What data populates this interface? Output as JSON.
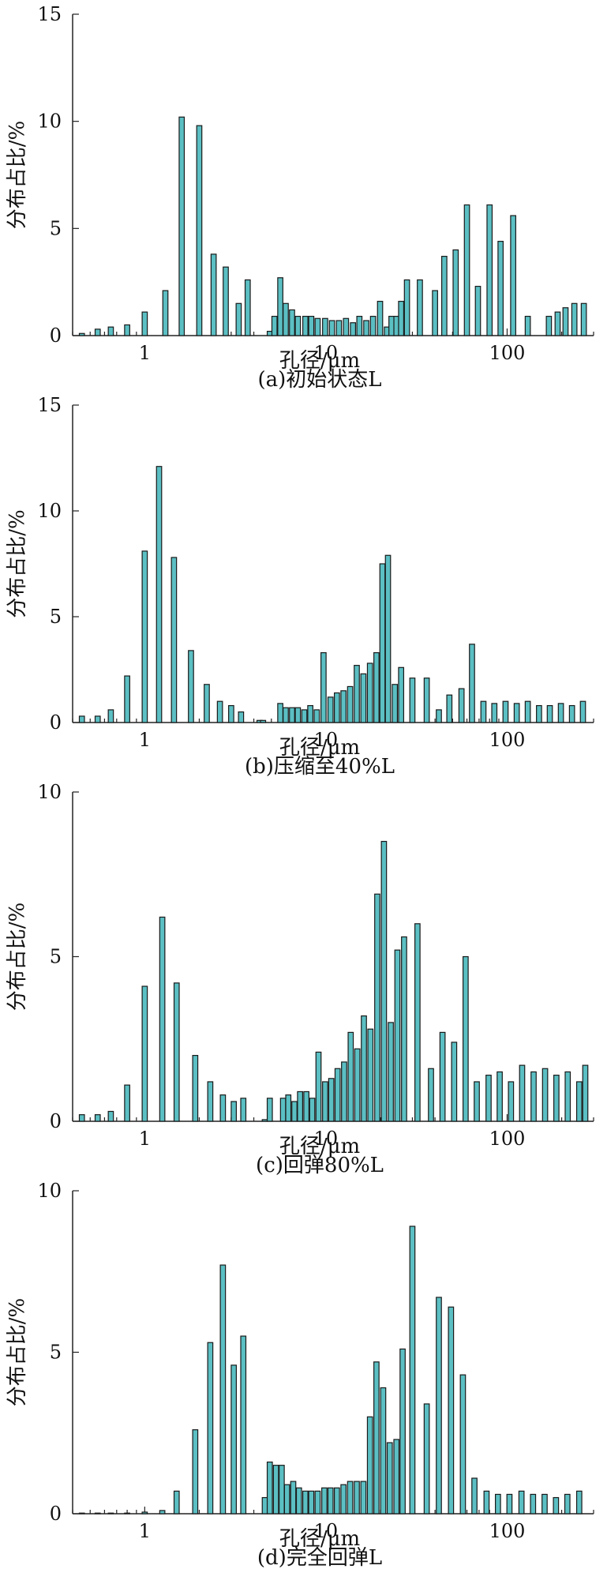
{
  "chart_data": [
    {
      "type": "bar",
      "caption": "(a)初始状态L",
      "xlabel": "孔径/μm",
      "ylabel": "分布占比/%",
      "xscale": "log",
      "xlim": [
        0.4,
        300
      ],
      "ylim": [
        0,
        15
      ],
      "yticks": [
        0,
        5,
        10,
        15
      ],
      "xticks": [
        1,
        10,
        100
      ],
      "bar_color": "#5bbfc3",
      "x": [
        0.45,
        0.55,
        0.65,
        0.8,
        1.0,
        1.3,
        1.6,
        2.0,
        2.4,
        2.8,
        3.3,
        3.7,
        4.9,
        5.2,
        5.6,
        6.0,
        6.5,
        7.0,
        7.7,
        8.3,
        9.0,
        9.9,
        10.8,
        11.8,
        12.9,
        14.1,
        15.3,
        16.7,
        18.2,
        19.9,
        21.7,
        23.0,
        24.5,
        26.0,
        28.0,
        33.0,
        40.0,
        45.0,
        52.0,
        60.0,
        69.0,
        80.0,
        92.0,
        108.0,
        130.0,
        170.0,
        190.0,
        210.0,
        235.0,
        265.0
      ],
      "values": [
        0.1,
        0.3,
        0.4,
        0.5,
        1.1,
        2.1,
        10.2,
        9.8,
        3.8,
        3.2,
        1.5,
        2.6,
        0.2,
        0.9,
        2.7,
        1.5,
        1.2,
        0.9,
        0.9,
        0.9,
        0.8,
        0.8,
        0.7,
        0.7,
        0.8,
        0.6,
        0.9,
        0.7,
        0.9,
        1.6,
        0.4,
        0.9,
        0.9,
        1.6,
        2.6,
        2.6,
        2.1,
        3.7,
        4.0,
        6.1,
        2.3,
        6.1,
        4.4,
        5.6,
        0.9,
        0.9,
        1.1,
        1.3,
        1.5,
        1.5
      ]
    },
    {
      "type": "bar",
      "caption": "(b)压缩至40%L",
      "xlabel": "孔径/μm",
      "ylabel": "分布占比/%",
      "xscale": "log",
      "xlim": [
        0.4,
        300
      ],
      "ylim": [
        0,
        15
      ],
      "yticks": [
        0,
        5,
        10,
        15
      ],
      "xticks": [
        1,
        10,
        100
      ],
      "bar_color": "#5bbfc3",
      "x": [
        0.45,
        0.55,
        0.65,
        0.8,
        1.0,
        1.2,
        1.45,
        1.8,
        2.2,
        2.6,
        3.0,
        3.4,
        4.3,
        4.5,
        5.6,
        6.0,
        6.5,
        7.0,
        7.6,
        8.2,
        8.9,
        9.7,
        10.6,
        11.5,
        12.5,
        13.6,
        14.8,
        16.1,
        17.5,
        19.0,
        20.5,
        22.0,
        24.0,
        26.0,
        30.0,
        36.0,
        42.0,
        48.0,
        56.0,
        64.0,
        74.0,
        85.0,
        98.0,
        113.0,
        130.0,
        150.0,
        172.0,
        198.0,
        228.0,
        262.0
      ],
      "values": [
        0.3,
        0.3,
        0.6,
        2.2,
        8.1,
        12.1,
        7.8,
        3.4,
        1.8,
        1.0,
        0.8,
        0.5,
        0.1,
        0.1,
        0.9,
        0.7,
        0.7,
        0.7,
        0.6,
        0.8,
        0.6,
        3.3,
        1.2,
        1.4,
        1.5,
        1.7,
        2.7,
        2.3,
        2.8,
        3.3,
        7.5,
        7.9,
        1.8,
        2.6,
        2.1,
        2.1,
        0.6,
        1.3,
        1.6,
        3.7,
        1.0,
        0.9,
        1.0,
        0.9,
        1.0,
        0.8,
        0.8,
        0.9,
        0.8,
        1.0
      ]
    },
    {
      "type": "bar",
      "caption": "(c)回弹80%L",
      "xlabel": "孔径/μm",
      "ylabel": "分布占比/%",
      "xscale": "log",
      "xlim": [
        0.4,
        300
      ],
      "ylim": [
        0,
        10
      ],
      "yticks": [
        0,
        5,
        10
      ],
      "xticks": [
        1,
        10,
        100
      ],
      "bar_color": "#5bbfc3",
      "x": [
        0.45,
        0.55,
        0.65,
        0.8,
        1.0,
        1.25,
        1.5,
        1.9,
        2.3,
        2.7,
        3.1,
        3.5,
        4.6,
        4.9,
        5.8,
        6.2,
        6.7,
        7.2,
        7.8,
        8.4,
        9.1,
        9.9,
        10.7,
        11.6,
        12.6,
        13.7,
        14.9,
        16.2,
        17.6,
        19.2,
        20.9,
        22.8,
        24.8,
        27.0,
        32.0,
        38.0,
        44.0,
        51.0,
        59.0,
        68.0,
        79.0,
        91.0,
        105.0,
        121.0,
        140.0,
        162.0,
        187.0,
        216.0,
        250.0,
        270.0
      ],
      "values": [
        0.2,
        0.2,
        0.3,
        1.1,
        4.1,
        6.2,
        4.2,
        2.0,
        1.2,
        0.8,
        0.6,
        0.7,
        0.05,
        0.7,
        0.7,
        0.8,
        0.6,
        0.9,
        0.9,
        0.7,
        2.1,
        1.2,
        1.3,
        1.6,
        1.8,
        2.7,
        2.2,
        3.2,
        2.8,
        6.9,
        8.5,
        3.0,
        5.2,
        5.6,
        6.0,
        1.6,
        2.7,
        2.4,
        5.0,
        1.2,
        1.4,
        1.5,
        1.2,
        1.7,
        1.5,
        1.6,
        1.4,
        1.5,
        1.2,
        1.7
      ]
    },
    {
      "type": "bar",
      "caption": "(d)完全回弹L",
      "xlabel": "孔径/μm",
      "ylabel": "分布占比/%",
      "xscale": "log",
      "xlim": [
        0.4,
        300
      ],
      "ylim": [
        0,
        10
      ],
      "yticks": [
        0,
        5,
        10
      ],
      "xticks": [
        1,
        10,
        100
      ],
      "bar_color": "#5bbfc3",
      "x": [
        0.45,
        0.55,
        0.65,
        0.8,
        1.0,
        1.25,
        1.5,
        1.9,
        2.3,
        2.7,
        3.1,
        3.5,
        4.6,
        4.9,
        5.3,
        5.7,
        6.1,
        6.6,
        7.1,
        7.7,
        8.3,
        9.0,
        9.8,
        10.6,
        11.5,
        12.5,
        13.6,
        14.8,
        16.1,
        17.5,
        19.0,
        20.7,
        22.5,
        24.5,
        26.5,
        30.0,
        36.0,
        42.0,
        49.0,
        57.0,
        66.0,
        77.0,
        89.0,
        103.0,
        120.0,
        139.0,
        161.0,
        186.0,
        215.0,
        250.0
      ],
      "values": [
        0.0,
        0.0,
        0.0,
        0.0,
        0.05,
        0.1,
        0.7,
        2.6,
        5.3,
        7.7,
        4.6,
        5.5,
        0.5,
        1.6,
        1.5,
        1.5,
        0.9,
        1.0,
        0.8,
        0.7,
        0.7,
        0.7,
        0.8,
        0.8,
        0.8,
        0.9,
        1.0,
        1.0,
        1.0,
        3.0,
        4.7,
        3.9,
        2.2,
        2.3,
        5.1,
        8.9,
        3.4,
        6.7,
        6.4,
        4.3,
        1.1,
        0.7,
        0.6,
        0.6,
        0.7,
        0.6,
        0.6,
        0.5,
        0.6,
        0.7
      ]
    }
  ]
}
